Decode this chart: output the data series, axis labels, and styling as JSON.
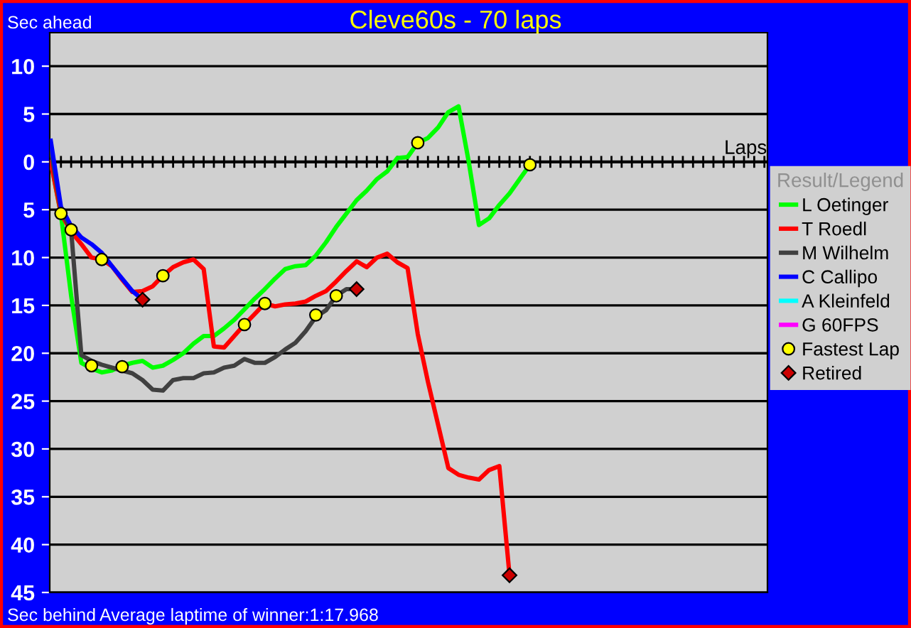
{
  "chart_data": {
    "type": "line",
    "title": "Cleve60s - 70 laps",
    "annotations": [
      "Sec ahead",
      "Sec behind",
      "Average laptime of winner:1:17.968"
    ],
    "legend_title": "Result/Legend",
    "categories": [
      null,
      null,
      null,
      null,
      null,
      null,
      null,
      null,
      null,
      null,
      null,
      null,
      null,
      null,
      null,
      null,
      null,
      null,
      null,
      null,
      null,
      null,
      null,
      null,
      null,
      null,
      null,
      null,
      null,
      null,
      null,
      null,
      null,
      null,
      null,
      null,
      null,
      null,
      null,
      null,
      null,
      null,
      null,
      null,
      null,
      null,
      null,
      null,
      null,
      null,
      null,
      null,
      null,
      null,
      null,
      null,
      null,
      null,
      null,
      null,
      null,
      null,
      null,
      null,
      null,
      null,
      null,
      null,
      null,
      null,
      null
    ],
    "ylim": [
      -45,
      13.5
    ],
    "yticks": [
      10,
      5,
      0,
      {
        "value": -5,
        "label": "5"
      },
      {
        "value": -10,
        "label": "10"
      },
      {
        "value": -15,
        "label": "15"
      },
      {
        "value": -20,
        "label": "20"
      },
      {
        "value": -25,
        "label": "25"
      },
      {
        "value": -30,
        "label": "30"
      },
      {
        "value": -35,
        "label": "35"
      },
      {
        "value": -40,
        "label": "40"
      },
      {
        "value": -45,
        "label": "45"
      }
    ],
    "grid": "y",
    "legend": "right",
    "ref_lines": [
      {
        "axis": "y",
        "value": 0,
        "label": "Laps",
        "color": "#000000"
      }
    ],
    "series": [
      {
        "name": "L Oetinger",
        "color": "#00ff00",
        "values": [
          0,
          -5.5,
          -14,
          -21,
          -21.6,
          -22,
          -21.8,
          -21.3,
          -21,
          -20.8,
          -21.5,
          -21.3,
          -20.7,
          -20,
          -19,
          -18.2,
          -18.2,
          -17.4,
          -16.5,
          -15.4,
          -14.3,
          -13.3,
          -12.2,
          -11.2,
          -10.9,
          -10.8,
          -9.8,
          -8.4,
          -6.8,
          -5.4,
          -4,
          -3,
          -1.8,
          -1,
          0.4,
          0.5,
          2,
          2.5,
          3.6,
          5.2,
          5.8,
          0,
          -6.6,
          -5.9,
          -4.5,
          -3.3,
          -1.8,
          -0.3,
          null,
          null,
          null,
          null,
          null,
          null,
          null,
          null,
          null,
          null,
          null,
          null,
          null,
          null,
          null,
          null,
          null,
          null,
          null,
          null,
          null,
          null,
          null
        ]
      },
      {
        "name": "T Roedl",
        "color": "#ff0000",
        "values": [
          0,
          -5.4,
          -7.3,
          -8.6,
          -10,
          -10.2,
          -10.9,
          -12.3,
          -13.6,
          -13.5,
          -13,
          -11.9,
          -11,
          -10.5,
          -10.2,
          -11.2,
          -19.3,
          -19.4,
          -18.2,
          -17,
          -15.9,
          -14.8,
          -15.1,
          -14.9,
          -14.8,
          -14.6,
          -14,
          -13.5,
          -12.5,
          -11.4,
          -10.4,
          -11,
          -10,
          -9.6,
          -10.5,
          -11.1,
          -18,
          -23,
          -27.5,
          -32,
          -32.7,
          -33,
          -33.2,
          -32.2,
          -31.8,
          -43.2,
          null,
          null,
          null,
          null,
          null,
          null,
          null,
          null,
          null,
          null,
          null,
          null,
          null,
          null,
          null,
          null,
          null,
          null,
          null,
          null,
          null,
          null,
          null,
          null,
          null
        ]
      },
      {
        "name": "M Wilhelm",
        "color": "#404040",
        "values": [
          1.3,
          -5,
          -7.2,
          -20.2,
          -20.8,
          -21.2,
          -21.5,
          -21.8,
          -22.1,
          -22.8,
          -23.8,
          -23.9,
          -22.8,
          -22.6,
          -22.6,
          -22.1,
          -22,
          -21.5,
          -21.3,
          -20.6,
          -21,
          -21,
          -20.4,
          -19.6,
          -18.9,
          -17.7,
          -16.2,
          -15.5,
          -14,
          -13.3,
          -13.3,
          null,
          null,
          null,
          null,
          null,
          null,
          null,
          null,
          null,
          null,
          null,
          null,
          null,
          null,
          null,
          null,
          null,
          null,
          null,
          null,
          null,
          null,
          null,
          null,
          null,
          null,
          null,
          null,
          null,
          null,
          null,
          null,
          null,
          null,
          null,
          null,
          null,
          null,
          null,
          null
        ]
      },
      {
        "name": "C Callipo",
        "color": "#0000ff",
        "values": [
          2.2,
          -4.7,
          -6.7,
          -7.9,
          -8.6,
          -9.5,
          -10.9,
          -12.2,
          -13.5,
          -14.4,
          null,
          null,
          null,
          null,
          null,
          null,
          null,
          null,
          null,
          null,
          null,
          null,
          null,
          null,
          null,
          null,
          null,
          null,
          null,
          null,
          null,
          null,
          null,
          null,
          null,
          null,
          null,
          null,
          null,
          null,
          null,
          null,
          null,
          null,
          null,
          null,
          null,
          null,
          null,
          null,
          null,
          null,
          null,
          null,
          null,
          null,
          null,
          null,
          null,
          null,
          null,
          null,
          null,
          null,
          null,
          null,
          null,
          null,
          null,
          null,
          null
        ]
      },
      {
        "name": "A Kleinfeld",
        "color": "#00ffff",
        "values": [
          null,
          null,
          null,
          null,
          null,
          null,
          null,
          null,
          null,
          null,
          null,
          null,
          null,
          null,
          null,
          null,
          null,
          null,
          null,
          null,
          null,
          null,
          null,
          null,
          null,
          null,
          null,
          null,
          null,
          null,
          null,
          null,
          null,
          null,
          null,
          null,
          null,
          null,
          null,
          null,
          null,
          null,
          null,
          null,
          null,
          null,
          null,
          null,
          null,
          null,
          null,
          null,
          null,
          null,
          null,
          null,
          null,
          null,
          null,
          null,
          null,
          null,
          null,
          null,
          null,
          null,
          null,
          null,
          null,
          null,
          null
        ]
      },
      {
        "name": "G 60FPS",
        "color": "#ff00ff",
        "values": [
          null,
          null,
          null,
          null,
          null,
          null,
          null,
          null,
          null,
          null,
          null,
          null,
          null,
          null,
          null,
          null,
          null,
          null,
          null,
          null,
          null,
          null,
          null,
          null,
          null,
          null,
          null,
          null,
          null,
          null,
          null,
          null,
          null,
          null,
          null,
          null,
          null,
          null,
          null,
          null,
          null,
          null,
          null,
          null,
          null,
          null,
          null,
          null,
          null,
          null,
          null,
          null,
          null,
          null,
          null,
          null,
          null,
          null,
          null,
          null,
          null,
          null,
          null,
          null,
          null,
          null,
          null,
          null,
          null,
          null,
          null
        ]
      },
      {
        "name": "Fastest Lap",
        "type": "scatter",
        "marker": "circle",
        "color": "#ffff00",
        "values": [
          null,
          -5.4,
          -7.1,
          null,
          -21.3,
          -10.2,
          null,
          -21.4,
          null,
          null,
          null,
          -11.9,
          null,
          null,
          null,
          null,
          null,
          null,
          null,
          -17,
          null,
          -14.8,
          null,
          null,
          null,
          null,
          -16,
          null,
          -14,
          null,
          null,
          null,
          null,
          null,
          null,
          null,
          2,
          null,
          null,
          null,
          null,
          null,
          null,
          null,
          null,
          null,
          null,
          -0.3,
          null,
          null,
          null,
          null,
          null,
          null,
          null,
          null,
          null,
          null,
          null,
          null,
          null,
          null,
          null,
          null,
          null,
          null,
          null,
          null,
          null,
          null,
          null
        ]
      },
      {
        "name": "Retired",
        "type": "scatter",
        "marker": "diamond",
        "color": "#cc0000",
        "values": [
          null,
          null,
          null,
          null,
          null,
          null,
          null,
          null,
          null,
          -14.4,
          null,
          null,
          null,
          null,
          null,
          null,
          null,
          null,
          null,
          null,
          null,
          null,
          null,
          null,
          null,
          null,
          null,
          null,
          null,
          null,
          -13.3,
          null,
          null,
          null,
          null,
          null,
          null,
          null,
          null,
          null,
          null,
          null,
          null,
          null,
          null,
          -43.2,
          null,
          null,
          null,
          null,
          null,
          null,
          null,
          null,
          null,
          null,
          null,
          null,
          null,
          null,
          null,
          null,
          null,
          null,
          null,
          null,
          null,
          null,
          null,
          null,
          null
        ]
      }
    ]
  }
}
